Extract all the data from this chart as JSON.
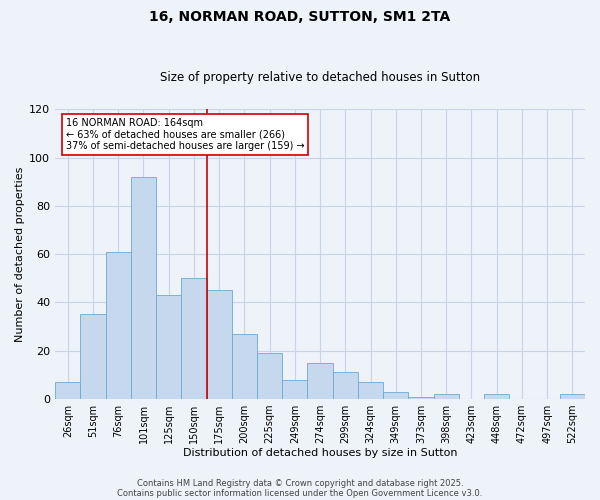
{
  "title": "16, NORMAN ROAD, SUTTON, SM1 2TA",
  "subtitle": "Size of property relative to detached houses in Sutton",
  "xlabel": "Distribution of detached houses by size in Sutton",
  "ylabel": "Number of detached properties",
  "bar_values": [
    7,
    35,
    61,
    92,
    43,
    50,
    45,
    27,
    19,
    8,
    15,
    11,
    7,
    3,
    1,
    2,
    0,
    2,
    0,
    0,
    2
  ],
  "all_labels": [
    "26sqm",
    "51sqm",
    "76sqm",
    "101sqm",
    "125sqm",
    "150sqm",
    "175sqm",
    "200sqm",
    "225sqm",
    "249sqm",
    "274sqm",
    "299sqm",
    "324sqm",
    "349sqm",
    "373sqm",
    "398sqm",
    "423sqm",
    "448sqm",
    "472sqm",
    "497sqm",
    "522sqm"
  ],
  "bar_color": "#c5d8ee",
  "bar_edge_color": "#6aaad4",
  "vline_x": 6,
  "vline_color": "#cc0000",
  "annotation_title": "16 NORMAN ROAD: 164sqm",
  "annotation_line1": "← 63% of detached houses are smaller (266)",
  "annotation_line2": "37% of semi-detached houses are larger (159) →",
  "annotation_box_color": "#ffffff",
  "annotation_box_edge": "#cc0000",
  "ylim": [
    0,
    120
  ],
  "yticks": [
    0,
    20,
    40,
    60,
    80,
    100,
    120
  ],
  "footer1": "Contains HM Land Registry data © Crown copyright and database right 2025.",
  "footer2": "Contains public sector information licensed under the Open Government Licence v3.0.",
  "bg_color": "#eef2f9",
  "grid_color": "#d0d8e8",
  "title_fontsize": 10,
  "subtitle_fontsize": 8.5,
  "xlabel_fontsize": 8,
  "ylabel_fontsize": 8,
  "tick_fontsize": 7,
  "footer_fontsize": 6
}
